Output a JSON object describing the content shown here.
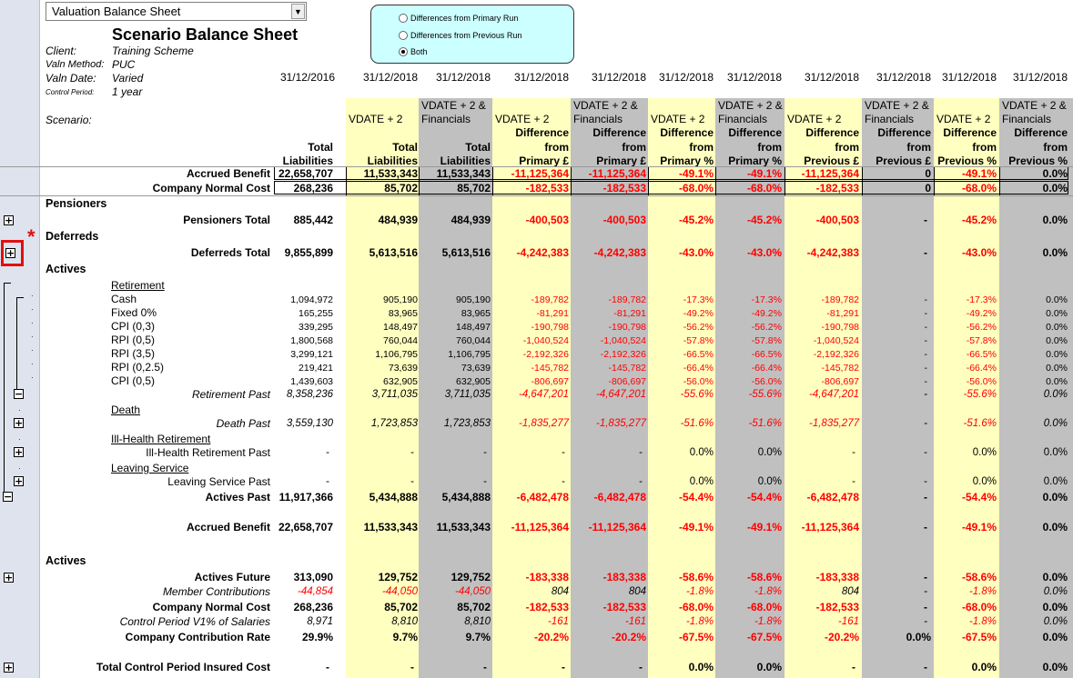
{
  "dropdown": {
    "value": "Valuation Balance Sheet"
  },
  "radio": {
    "options": [
      "Differences from Primary Run",
      "Differences from Previous Run",
      "Both"
    ],
    "selected": "Both"
  },
  "title": "Scenario Balance Sheet",
  "info": [
    {
      "label": "Client:",
      "value": "Training Scheme"
    },
    {
      "label": "Valn Method:",
      "value": "PUC"
    },
    {
      "label": "Valn Date:",
      "value": "Varied"
    },
    {
      "label": "Control Period:",
      "value": "1 year"
    }
  ],
  "scenario_label": "Scenario:",
  "columns": [
    {
      "date": "31/12/2016",
      "scenario": "",
      "measure": [
        "Total",
        "Liabilities"
      ]
    },
    {
      "date": "31/12/2018",
      "scenario": "VDATE + 2",
      "measure": [
        "Total",
        "Liabilities"
      ]
    },
    {
      "date": "31/12/2018",
      "scenario": "VDATE + 2 & Financials",
      "measure": [
        "Total",
        "Liabilities"
      ]
    },
    {
      "date": "31/12/2018",
      "scenario": "VDATE + 2",
      "measure": [
        "Difference",
        "from",
        "Primary £"
      ]
    },
    {
      "date": "31/12/2018",
      "scenario": "VDATE + 2 & Financials",
      "measure": [
        "Difference",
        "from",
        "Primary £"
      ]
    },
    {
      "date": "31/12/2018",
      "scenario": "VDATE + 2",
      "measure": [
        "Difference",
        "from",
        "Primary %"
      ]
    },
    {
      "date": "31/12/2018",
      "scenario": "VDATE + 2 & Financials",
      "measure": [
        "Difference",
        "from",
        "Primary %"
      ]
    },
    {
      "date": "31/12/2018",
      "scenario": "VDATE + 2",
      "measure": [
        "Difference",
        "from",
        "Previous £"
      ]
    },
    {
      "date": "31/12/2018",
      "scenario": "VDATE + 2 & Financials",
      "measure": [
        "Difference",
        "from",
        "Previous £"
      ]
    },
    {
      "date": "31/12/2018",
      "scenario": "VDATE + 2",
      "measure": [
        "Difference",
        "from",
        "Previous %"
      ]
    },
    {
      "date": "31/12/2018",
      "scenario": "VDATE + 2 & Financials",
      "measure": [
        "Difference",
        "from",
        "Previous %"
      ]
    }
  ],
  "rows": [
    {
      "label": "Accrued Benefit",
      "style": "bold boxed",
      "values": [
        "22,658,707",
        "11,533,343",
        "11,533,343",
        "-11,125,364",
        "-11,125,364",
        "-49.1%",
        "-49.1%",
        "-11,125,364",
        "0",
        "-49.1%",
        "0.0%"
      ]
    },
    {
      "label": "Company Normal Cost",
      "style": "bold boxed",
      "values": [
        "268,236",
        "85,702",
        "85,702",
        "-182,533",
        "-182,533",
        "-68.0%",
        "-68.0%",
        "-182,533",
        "0",
        "-68.0%",
        "0.0%"
      ]
    },
    {
      "label": "Pensioners",
      "style": "section"
    },
    {
      "label": "Pensioners Total",
      "style": "bold",
      "values": [
        "885,442",
        "484,939",
        "484,939",
        "-400,503",
        "-400,503",
        "-45.2%",
        "-45.2%",
        "-400,503",
        "-",
        "-45.2%",
        "0.0%"
      ]
    },
    {
      "label": "Deferreds",
      "style": "section"
    },
    {
      "label": "Deferreds Total",
      "style": "bold",
      "values": [
        "9,855,899",
        "5,613,516",
        "5,613,516",
        "-4,242,383",
        "-4,242,383",
        "-43.0%",
        "-43.0%",
        "-4,242,383",
        "-",
        "-43.0%",
        "0.0%"
      ]
    },
    {
      "label": "Actives",
      "style": "section"
    },
    {
      "label": "Retirement",
      "style": "group"
    },
    {
      "label": "Cash",
      "style": "detail",
      "values": [
        "1,094,972",
        "905,190",
        "905,190",
        "-189,782",
        "-189,782",
        "-17.3%",
        "-17.3%",
        "-189,782",
        "-",
        "-17.3%",
        "0.0%"
      ]
    },
    {
      "label": "Fixed 0%",
      "style": "detail",
      "values": [
        "165,255",
        "83,965",
        "83,965",
        "-81,291",
        "-81,291",
        "-49.2%",
        "-49.2%",
        "-81,291",
        "-",
        "-49.2%",
        "0.0%"
      ]
    },
    {
      "label": "CPI (0,3)",
      "style": "detail",
      "values": [
        "339,295",
        "148,497",
        "148,497",
        "-190,798",
        "-190,798",
        "-56.2%",
        "-56.2%",
        "-190,798",
        "-",
        "-56.2%",
        "0.0%"
      ]
    },
    {
      "label": "RPI (0,5)",
      "style": "detail",
      "values": [
        "1,800,568",
        "760,044",
        "760,044",
        "-1,040,524",
        "-1,040,524",
        "-57.8%",
        "-57.8%",
        "-1,040,524",
        "-",
        "-57.8%",
        "0.0%"
      ]
    },
    {
      "label": "RPI (3,5)",
      "style": "detail",
      "values": [
        "3,299,121",
        "1,106,795",
        "1,106,795",
        "-2,192,326",
        "-2,192,326",
        "-66.5%",
        "-66.5%",
        "-2,192,326",
        "-",
        "-66.5%",
        "0.0%"
      ]
    },
    {
      "label": "RPI (0,2.5)",
      "style": "detail",
      "values": [
        "219,421",
        "73,639",
        "73,639",
        "-145,782",
        "-145,782",
        "-66.4%",
        "-66.4%",
        "-145,782",
        "-",
        "-66.4%",
        "0.0%"
      ]
    },
    {
      "label": "CPI (0,5)",
      "style": "detail",
      "values": [
        "1,439,603",
        "632,905",
        "632,905",
        "-806,697",
        "-806,697",
        "-56.0%",
        "-56.0%",
        "-806,697",
        "-",
        "-56.0%",
        "0.0%"
      ]
    },
    {
      "label": "Retirement Past",
      "style": "italic",
      "values": [
        "8,358,236",
        "3,711,035",
        "3,711,035",
        "-4,647,201",
        "-4,647,201",
        "-55.6%",
        "-55.6%",
        "-4,647,201",
        "-",
        "-55.6%",
        "0.0%"
      ]
    },
    {
      "label": "Death",
      "style": "group"
    },
    {
      "label": "Death Past",
      "style": "italic",
      "values": [
        "3,559,130",
        "1,723,853",
        "1,723,853",
        "-1,835,277",
        "-1,835,277",
        "-51.6%",
        "-51.6%",
        "-1,835,277",
        "-",
        "-51.6%",
        "0.0%"
      ]
    },
    {
      "label": "Ill-Health Retirement",
      "style": "group"
    },
    {
      "label": "Ill-Health Retirement Past",
      "style": "plain",
      "values": [
        "-",
        "-",
        "-",
        "-",
        "-",
        "0.0%",
        "0.0%",
        "-",
        "-",
        "0.0%",
        "0.0%"
      ]
    },
    {
      "label": "Leaving Service",
      "style": "group"
    },
    {
      "label": "Leaving Service Past",
      "style": "plain",
      "values": [
        "-",
        "-",
        "-",
        "-",
        "-",
        "0.0%",
        "0.0%",
        "-",
        "-",
        "0.0%",
        "0.0%"
      ]
    },
    {
      "label": "Actives Past",
      "style": "bold",
      "values": [
        "11,917,366",
        "5,434,888",
        "5,434,888",
        "-6,482,478",
        "-6,482,478",
        "-54.4%",
        "-54.4%",
        "-6,482,478",
        "-",
        "-54.4%",
        "0.0%"
      ]
    },
    {
      "label": "Accrued Benefit",
      "style": "bold",
      "values": [
        "22,658,707",
        "11,533,343",
        "11,533,343",
        "-11,125,364",
        "-11,125,364",
        "-49.1%",
        "-49.1%",
        "-11,125,364",
        "-",
        "-49.1%",
        "0.0%"
      ]
    },
    {
      "label": "Actives",
      "style": "section"
    },
    {
      "label": "Actives Future",
      "style": "bold",
      "values": [
        "313,090",
        "129,752",
        "129,752",
        "-183,338",
        "-183,338",
        "-58.6%",
        "-58.6%",
        "-183,338",
        "-",
        "-58.6%",
        "0.0%"
      ]
    },
    {
      "label": "Member Contributions",
      "style": "italic",
      "values": [
        "-44,854",
        "-44,050",
        "-44,050",
        "804",
        "804",
        "-1.8%",
        "-1.8%",
        "804",
        "-",
        "-1.8%",
        "0.0%"
      ]
    },
    {
      "label": "Company Normal Cost",
      "style": "bold",
      "values": [
        "268,236",
        "85,702",
        "85,702",
        "-182,533",
        "-182,533",
        "-68.0%",
        "-68.0%",
        "-182,533",
        "-",
        "-68.0%",
        "0.0%"
      ]
    },
    {
      "label": "Control Period V1% of Salaries",
      "style": "italic",
      "values": [
        "8,971",
        "8,810",
        "8,810",
        "-161",
        "-161",
        "-1.8%",
        "-1.8%",
        "-161",
        "-",
        "-1.8%",
        "0.0%"
      ]
    },
    {
      "label": "Company Contribution Rate",
      "style": "bold",
      "values": [
        "29.9%",
        "9.7%",
        "9.7%",
        "-20.2%",
        "-20.2%",
        "-67.5%",
        "-67.5%",
        "-20.2%",
        "0.0%",
        "-67.5%",
        "0.0%"
      ]
    },
    {
      "label": "Total Control Period Insured Cost",
      "style": "bold",
      "values": [
        "-",
        "-",
        "-",
        "-",
        "-",
        "0.0%",
        "0.0%",
        "-",
        "-",
        "0.0%",
        "0.0%"
      ]
    }
  ],
  "colors": {
    "yellow": "#ffffc0",
    "gray": "#c0c0c0",
    "negative": "#ff0000",
    "radio_panel": "#ccffff",
    "highlight": "#e01010"
  }
}
